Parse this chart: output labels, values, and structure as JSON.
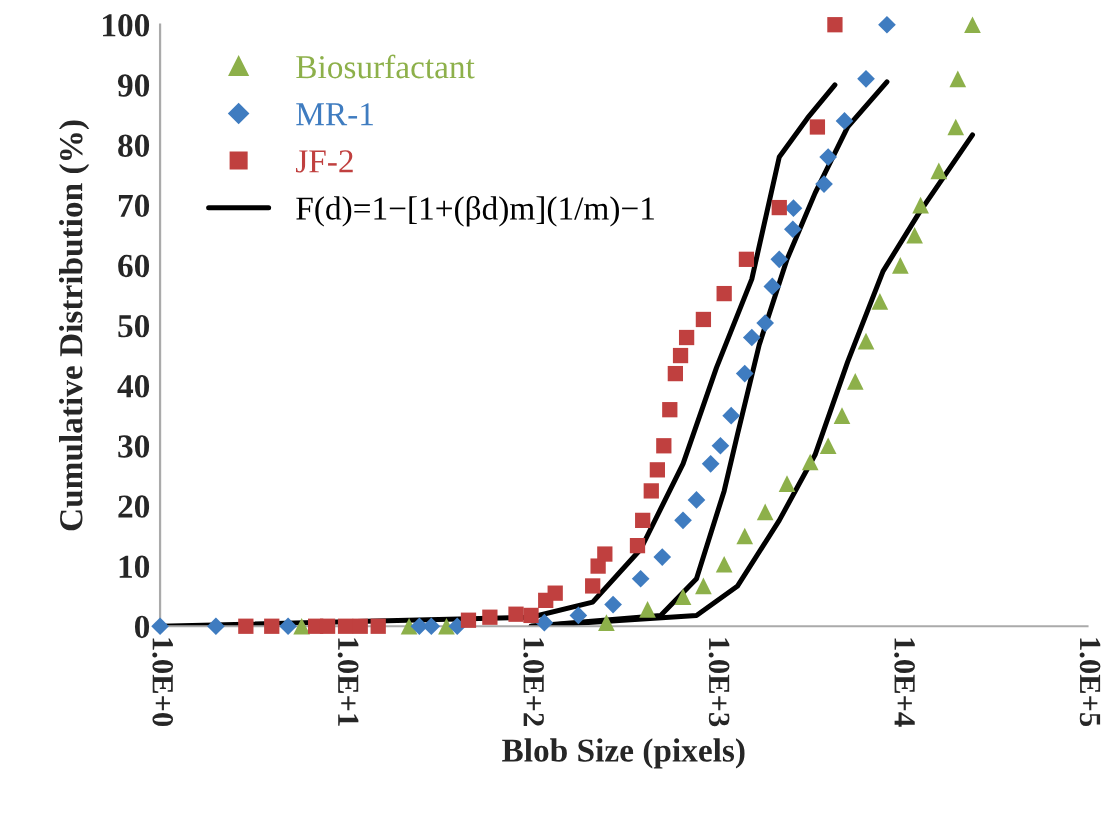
{
  "chart_data": {
    "type": "scatter",
    "xlabel": "Blob Size (pixels)",
    "ylabel": "Cumulative Distribution (%)",
    "log": "x",
    "xlim": [
      1,
      100000
    ],
    "xticks": [
      {
        "value": 1,
        "label": "1.0E+0"
      },
      {
        "value": 10,
        "label": "1.0E+1"
      },
      {
        "value": 100,
        "label": "1.0E+2"
      },
      {
        "value": 1000,
        "label": "1.0E+3"
      },
      {
        "value": 10000,
        "label": "1.0E+4"
      },
      {
        "value": 100000,
        "label": "1.0E+5"
      }
    ],
    "ylim": [
      0,
      100
    ],
    "yticks": [
      0,
      10,
      20,
      30,
      40,
      50,
      60,
      70,
      80,
      90,
      100
    ],
    "grid": false,
    "legend": "top left",
    "series": [
      {
        "name": "Biosurfactant",
        "marker": "triangle",
        "color": "#8db04a",
        "x": [
          5.8,
          22,
          35,
          255,
          425,
          660,
          850,
          1100,
          1420,
          1830,
          2400,
          3200,
          4000,
          4750,
          5600,
          6400,
          7600,
          9800,
          11700,
          12600,
          15800,
          19500,
          20000,
          24000
        ],
        "values": [
          0,
          0,
          0,
          0.6,
          2.8,
          4.9,
          6.7,
          10.3,
          15,
          19,
          23.7,
          27.3,
          30,
          35,
          40.7,
          47.4,
          54,
          60,
          65,
          70,
          75.7,
          83,
          91,
          100
        ]
      },
      {
        "name": "MR-1",
        "marker": "diamond",
        "color": "#3f7cc0",
        "x": [
          1,
          2,
          4.9,
          25,
          29,
          40,
          118,
          180,
          277,
          390,
          510,
          660,
          780,
          930,
          1050,
          1200,
          1420,
          1550,
          1830,
          2000,
          2180,
          2580,
          2600,
          3800,
          4000,
          4900,
          6400,
          8300
        ],
        "values": [
          0,
          0,
          0,
          0,
          0,
          0,
          0.6,
          1.8,
          3.6,
          7.9,
          11.5,
          17.6,
          21,
          27,
          30,
          35,
          42,
          48,
          50.4,
          56.5,
          61,
          66,
          69.5,
          73.5,
          78,
          84,
          91,
          100
        ]
      },
      {
        "name": "JF-2",
        "marker": "square",
        "color": "#c0403f",
        "x": [
          2.9,
          4,
          6.9,
          8,
          10,
          12,
          15,
          46,
          60,
          83,
          100,
          120,
          135,
          215,
          230,
          250,
          375,
          400,
          445,
          480,
          520,
          560,
          600,
          640,
          690,
          850,
          1100,
          1450,
          2180,
          3500,
          4350
        ],
        "values": [
          0,
          0,
          0,
          0,
          0,
          0,
          0,
          1,
          1.5,
          2,
          1.8,
          4.3,
          5.5,
          6.7,
          10,
          12,
          13.4,
          17.6,
          22.5,
          26,
          30,
          36,
          42,
          45,
          48,
          51,
          55.3,
          61,
          69.6,
          83,
          100
        ]
      },
      {
        "name": "F(d)=1−[1+(βd)m](1/m)−1",
        "type": "line",
        "marker": "none",
        "line_style": "solid",
        "color": "#000000",
        "x": [
          1,
          100,
          215,
          390,
          660,
          1000,
          1550,
          2180,
          3100,
          4350
        ],
        "values": [
          0,
          1.5,
          4,
          12.8,
          27,
          43,
          57.7,
          78,
          84.5,
          90
        ]
      },
      {
        "type": "line",
        "marker": "none",
        "line_style": "solid",
        "color": "#000000",
        "x": [
          100,
          500,
          780,
          1100,
          1300,
          1700,
          2400,
          3400,
          5100,
          8300
        ],
        "values": [
          0,
          1.8,
          7.9,
          22.5,
          32,
          46.8,
          61,
          72,
          83,
          90.5
        ]
      },
      {
        "type": "line",
        "marker": "none",
        "line_style": "solid",
        "color": "#000000",
        "x": [
          100,
          780,
          1300,
          2180,
          3400,
          5100,
          7900,
          12300,
          24000
        ],
        "values": [
          0,
          1.8,
          6.7,
          17.6,
          28.5,
          44,
          59,
          68.6,
          81.7
        ]
      }
    ]
  }
}
